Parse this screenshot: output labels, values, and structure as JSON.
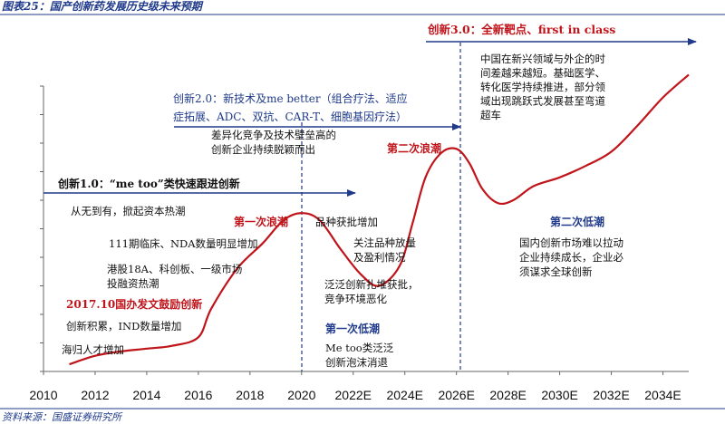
{
  "figure_title": "图表25：国产创新药发展历史级未来预期",
  "source": "资料来源：国盛证券研究所",
  "colors": {
    "curve": "#c0141b",
    "arrow": "#1f3a8a",
    "axis": "#666666",
    "title": "#1f3a8a"
  },
  "chart_data": {
    "type": "line",
    "title": "",
    "xlabel": "",
    "ylabel": "",
    "x_range": [
      2010,
      2035
    ],
    "y_range": [
      0,
      10
    ],
    "x_ticks": [
      "2010",
      "2012",
      "2014",
      "2016",
      "2018",
      "2020",
      "2022E",
      "2024E",
      "2026E",
      "2028E",
      "2030E",
      "2032E",
      "2034E"
    ],
    "y_ticks": [
      0,
      1,
      2,
      3,
      4,
      5,
      6,
      7,
      8,
      9,
      10
    ],
    "grid": false,
    "series": [
      {
        "points": [
          [
            2011,
            0.25
          ],
          [
            2012,
            0.55
          ],
          [
            2013,
            0.7
          ],
          [
            2014,
            0.8
          ],
          [
            2015,
            0.9
          ],
          [
            2016,
            1.2
          ],
          [
            2016.5,
            2.2
          ],
          [
            2017.5,
            3.6
          ],
          [
            2018.5,
            4.5
          ],
          [
            2019.3,
            5.3
          ],
          [
            2020,
            5.55
          ],
          [
            2020.7,
            5.3
          ],
          [
            2021.5,
            4.3
          ],
          [
            2022.3,
            3.4
          ],
          [
            2023,
            3.0
          ],
          [
            2023.8,
            3.7
          ],
          [
            2024.3,
            5.2
          ],
          [
            2024.8,
            6.8
          ],
          [
            2025.4,
            7.65
          ],
          [
            2026,
            7.8
          ],
          [
            2026.5,
            7.3
          ],
          [
            2027,
            6.4
          ],
          [
            2027.6,
            5.9
          ],
          [
            2028.2,
            6.0
          ],
          [
            2029,
            6.5
          ],
          [
            2030,
            6.8
          ],
          [
            2031,
            7.2
          ],
          [
            2032,
            7.7
          ],
          [
            2033,
            8.6
          ],
          [
            2034,
            9.6
          ],
          [
            2035,
            10.4
          ]
        ]
      }
    ],
    "phase_dividers": [
      "2020",
      "2026E"
    ],
    "annotations": {
      "phase1": "创新1.0：“me too”类快速跟进创新",
      "phase2": "创新2.0：新技术及me better（组合疗法、适应症拓展、ADC、双抗、CAR-T、细胞基因疗法）",
      "phase3": "创新3.0：全新靶点、first in class",
      "wave1": "第一次浪潮",
      "wave2": "第二次浪潮",
      "trough1": "第一次低潮",
      "trough2": "第二次低潮",
      "notes": {
        "from_zero": "从无到有，掀起资本热潮",
        "phase1_trial": "111期临床、NDA数量明显增加",
        "hk_listing": [
          "港股18A、科创板、一级市场",
          "投融资热潮"
        ],
        "policy_2017": "2017.10国办发文鼓励创新",
        "ind": "创新积累，IND数量增加",
        "returnees": "海归人才增加",
        "differentiation": [
          "差异化竞争及技术壁垒高的",
          "创新企业持续脱颖而出"
        ],
        "approvals": "品种获批增加",
        "volume": [
          "关注品种放量",
          "及盈利情况"
        ],
        "pan_innovation": [
          "泛泛创新扎堆获批，",
          "竞争环境恶化"
        ],
        "metoo_bubble": [
          "Me too类泛泛",
          "创新泡沫消退"
        ],
        "china_gap": [
          "中国在新兴领域与外企的时",
          "间差越来越短。基础医学、",
          "转化医学持续推进，部分领",
          "域出现跳跃式发展甚至弯道",
          "超车"
        ],
        "domestic_market": [
          "国内创新市场难以拉动",
          "企业持续成长，企业必",
          "须谋求全球创新"
        ]
      }
    }
  }
}
